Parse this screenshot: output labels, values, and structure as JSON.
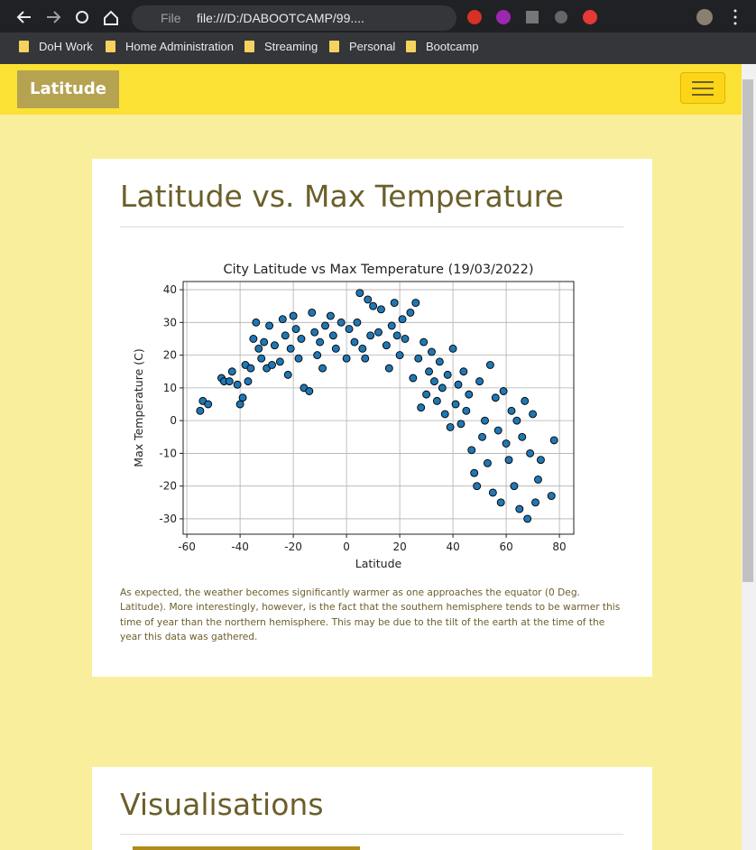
{
  "browser": {
    "site_label": "File",
    "address": "file:///D:/DABOOTCAMP/99....",
    "bookmarks": [
      "DoH Work",
      "Home Administration",
      "Streaming",
      "Personal",
      "Bootcamp"
    ]
  },
  "navbar": {
    "brand": "Latitude"
  },
  "card": {
    "title": "Latitude vs. Max Temperature",
    "description": "As expected, the weather becomes significantly warmer as one approaches the equator (0 Deg. Latitude). More interestingly, however, is the fact that the southern hemisphere tends to be warmer this time of year than the northern hemisphere. This may be due to the tilt of the earth at the time of the year this data was gathered."
  },
  "chart_data": {
    "type": "scatter",
    "title": "City Latitude vs Max Temperature (19/03/2022)",
    "x_label": "Latitude",
    "y_label": "Max Temperature (C)",
    "color": "#1f77b4",
    "grid": true,
    "x": [
      -55,
      -54,
      -52,
      -47,
      -46,
      -44,
      -43,
      -41,
      -40,
      -39,
      -38,
      -37,
      -36,
      -35,
      -34,
      -33,
      -32,
      -31,
      -30,
      -29,
      -28,
      -27,
      -25,
      -24,
      -23,
      -22,
      -21,
      -20,
      -19,
      -18,
      -17,
      -16,
      -14,
      -13,
      -12,
      -11,
      -10,
      -9,
      -8,
      -6,
      -5,
      -4,
      -2,
      0,
      1,
      3,
      4,
      5,
      6,
      7,
      8,
      9,
      10,
      12,
      13,
      15,
      16,
      17,
      18,
      19,
      20,
      21,
      22,
      24,
      25,
      26,
      27,
      28,
      29,
      30,
      31,
      32,
      33,
      34,
      35,
      36,
      37,
      38,
      39,
      40,
      41,
      42,
      43,
      44,
      45,
      46,
      47,
      48,
      49,
      50,
      51,
      52,
      53,
      54,
      55,
      56,
      57,
      58,
      59,
      60,
      61,
      62,
      63,
      64,
      65,
      66,
      67,
      68,
      69,
      70,
      71,
      72,
      73,
      77,
      78
    ],
    "values": [
      3,
      6,
      5,
      13,
      12,
      12,
      15,
      11,
      5,
      7,
      17,
      12,
      16,
      25,
      30,
      22,
      19,
      24,
      16,
      29,
      17,
      23,
      18,
      31,
      26,
      14,
      22,
      32,
      28,
      19,
      25,
      10,
      9,
      33,
      27,
      20,
      24,
      16,
      29,
      32,
      26,
      22,
      30,
      19,
      28,
      24,
      30,
      39,
      22,
      19,
      37,
      26,
      35,
      27,
      34,
      23,
      16,
      29,
      36,
      26,
      20,
      31,
      25,
      33,
      13,
      36,
      19,
      4,
      24,
      8,
      15,
      21,
      12,
      6,
      18,
      10,
      2,
      14,
      -2,
      22,
      5,
      11,
      -1,
      15,
      3,
      8,
      -9,
      -16,
      -20,
      12,
      -5,
      0,
      -13,
      17,
      -22,
      7,
      -3,
      -25,
      9,
      -7,
      -12,
      3,
      -20,
      0,
      -27,
      -5,
      6,
      -30,
      -10,
      2,
      -25,
      -18,
      -12,
      -23,
      -6
    ],
    "xlim": [
      -61.4,
      85.4
    ],
    "ylim": [
      -34.7,
      42.5
    ],
    "xticks": [
      -60,
      -40,
      -20,
      0,
      20,
      40,
      60,
      80
    ],
    "yticks": [
      -30,
      -20,
      -10,
      0,
      10,
      20,
      30,
      40
    ]
  },
  "section2": {
    "title": "Visualisations"
  }
}
